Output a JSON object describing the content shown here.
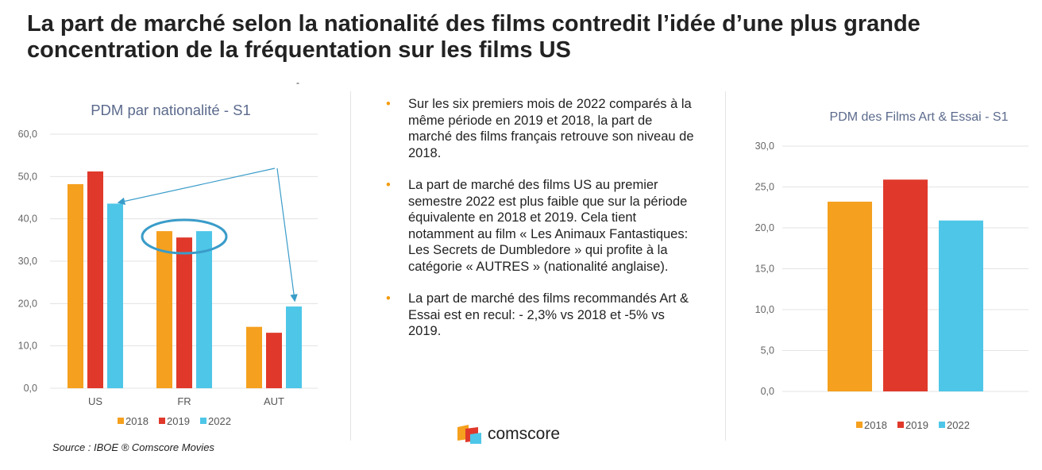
{
  "title": "La part de marché selon la nationalité des films contredit l’idée d’une plus grande concentration de la fréquentation sur les films US",
  "bullets": [
    "Sur les six premiers mois de 2022 comparés à la même période en 2019 et 2018, la part de marché des films français retrouve son niveau de 2018.",
    "La part de marché des films US au premier semestre 2022 est plus faible que sur la période équivalente en 2018 et 2019. Cela tient notamment au film « Les Animaux Fantastiques: Les Secrets de Dumbledore » qui profite à la catégorie « AUTRES » (nationalité anglaise).",
    "La part de marché des films recommandés Art & Essai est en recul: - 2,3% vs 2018 et -5% vs 2019."
  ],
  "source": "Source : IBOE ® Comscore Movies",
  "logo_text": "comscore",
  "colors": {
    "2018": "#f5a01e",
    "2019": "#e0392b",
    "2022": "#4ec6e8",
    "title": "#5b6a8c",
    "annotation": "#3a9cc9"
  },
  "chart_data": [
    {
      "type": "bar",
      "title": "PDM par nationalité - S1",
      "categories": [
        "US",
        "FR",
        "AUT"
      ],
      "ylim": [
        0,
        60
      ],
      "yticks": [
        "0,0",
        "10,0",
        "20,0",
        "30,0",
        "40,0",
        "50,0",
        "60,0"
      ],
      "grid": true,
      "legend": "bottom",
      "series": [
        {
          "name": "2018",
          "values": [
            48.2,
            37.1,
            14.5
          ]
        },
        {
          "name": "2019",
          "values": [
            51.2,
            35.6,
            13.1
          ]
        },
        {
          "name": "2022",
          "values": [
            43.6,
            37.1,
            19.3
          ]
        }
      ],
      "annotations": [
        "arrows pointing to US 2022 and AUT 2022",
        "ellipse around FR bars"
      ]
    },
    {
      "type": "bar",
      "title": "PDM des Films Art & Essai - S1",
      "categories": [
        ""
      ],
      "ylim": [
        0,
        30
      ],
      "yticks": [
        "0,0",
        "5,0",
        "10,0",
        "15,0",
        "20,0",
        "25,0",
        "30,0"
      ],
      "grid": true,
      "legend": "bottom",
      "series": [
        {
          "name": "2018",
          "values": [
            23.2
          ]
        },
        {
          "name": "2019",
          "values": [
            25.9
          ]
        },
        {
          "name": "2022",
          "values": [
            20.9
          ]
        }
      ]
    }
  ]
}
